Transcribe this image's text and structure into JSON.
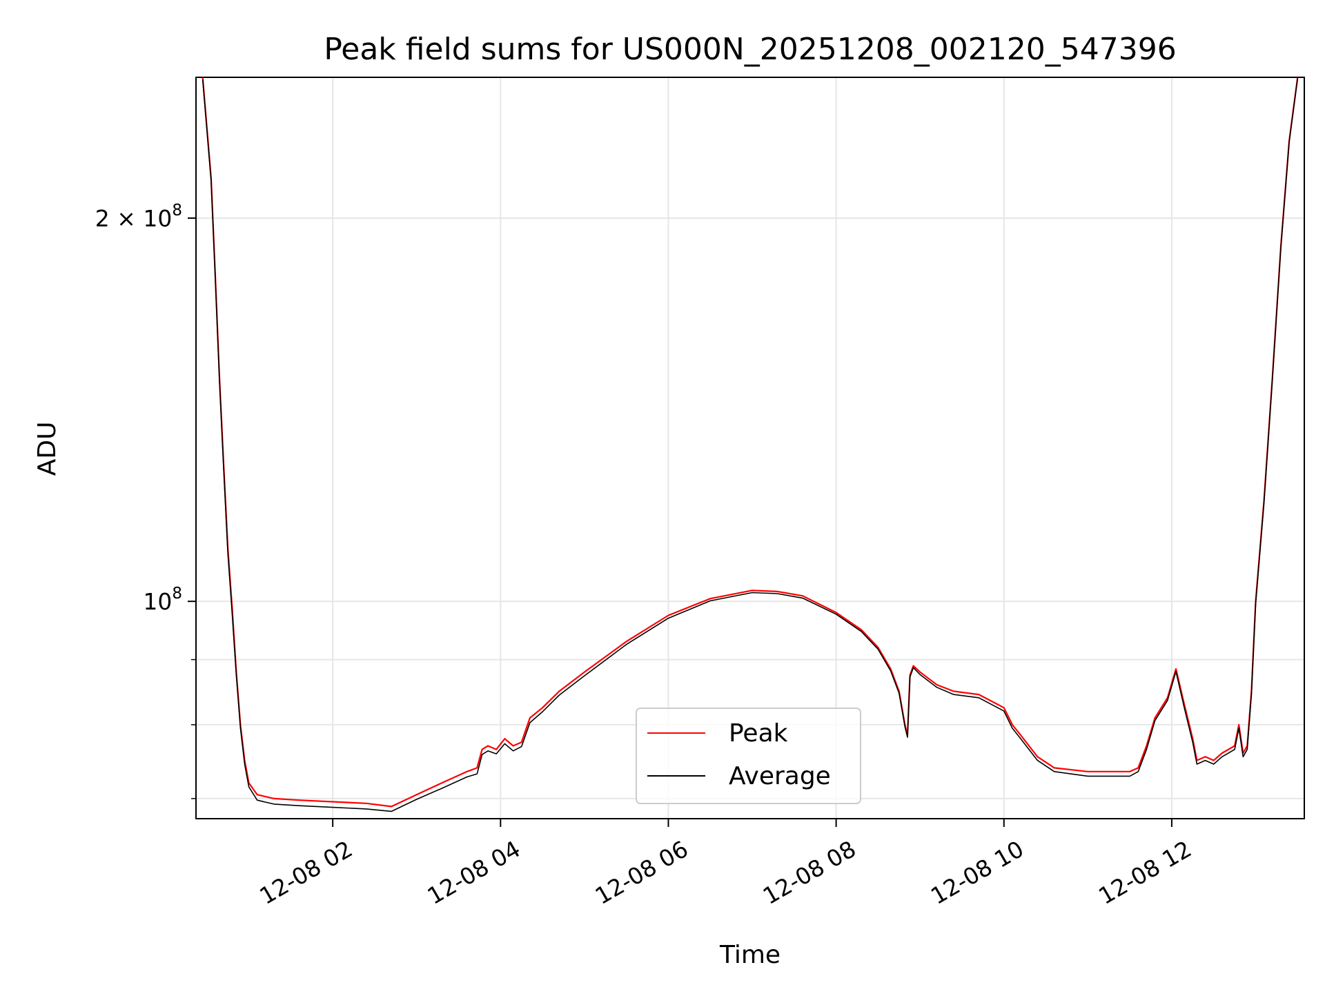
{
  "chart_data": {
    "type": "line",
    "title": "Peak field sums for US000N_20251208_002120_547396",
    "xlabel": "Time",
    "ylabel": "ADU",
    "x_unit": "hours (2025-12-08)",
    "xlim": [
      0.37,
      13.58
    ],
    "ylim": [
      67500000,
      258000000
    ],
    "yscale": "log",
    "grid": true,
    "legend": {
      "position": "lower-center"
    },
    "xticks": [
      {
        "value": 2,
        "label": "12-08 02"
      },
      {
        "value": 4,
        "label": "12-08 04"
      },
      {
        "value": 6,
        "label": "12-08 06"
      },
      {
        "value": 8,
        "label": "12-08 08"
      },
      {
        "value": 10,
        "label": "12-08 10"
      },
      {
        "value": 12,
        "label": "12-08 12"
      }
    ],
    "yticks_major": [
      {
        "value": 100000000,
        "base": "10",
        "exp": "8",
        "mult": ""
      },
      {
        "value": 200000000,
        "base": "10",
        "exp": "8",
        "mult": "2 × "
      }
    ],
    "yticks_minor": [
      70000000,
      80000000,
      90000000
    ],
    "series": [
      {
        "name": "Peak",
        "color": "#ff0000",
        "x": [
          0.45,
          0.55,
          0.6,
          0.65,
          0.7,
          0.75,
          0.8,
          0.85,
          0.9,
          0.95,
          1.0,
          1.1,
          1.3,
          1.6,
          2.0,
          2.4,
          2.7,
          3.0,
          3.3,
          3.6,
          3.72,
          3.78,
          3.85,
          3.95,
          4.05,
          4.15,
          4.25,
          4.35,
          4.5,
          4.7,
          5.0,
          5.5,
          6.0,
          6.5,
          7.0,
          7.3,
          7.6,
          8.0,
          8.3,
          8.5,
          8.65,
          8.75,
          8.82,
          8.85,
          8.88,
          8.92,
          9.0,
          9.2,
          9.4,
          9.7,
          10.0,
          10.1,
          10.2,
          10.4,
          10.6,
          11.0,
          11.5,
          11.6,
          11.7,
          11.8,
          11.95,
          12.05,
          12.15,
          12.25,
          12.3,
          12.4,
          12.5,
          12.6,
          12.75,
          12.8,
          12.85,
          12.9,
          12.95,
          13.0,
          13.1,
          13.2,
          13.3,
          13.4,
          13.5
        ],
        "values": [
          258000000,
          215000000,
          180000000,
          150000000,
          128000000,
          110000000,
          99000000,
          88000000,
          80000000,
          75000000,
          72000000,
          70500000,
          70000000,
          69800000,
          69600000,
          69400000,
          69000000,
          70500000,
          72000000,
          73500000,
          74000000,
          76500000,
          77000000,
          76500000,
          78000000,
          77000000,
          77500000,
          81000000,
          82500000,
          85000000,
          88000000,
          93000000,
          97500000,
          100500000,
          102000000,
          101800000,
          101000000,
          98000000,
          95000000,
          92000000,
          88500000,
          85000000,
          80000000,
          78500000,
          87500000,
          89000000,
          88000000,
          86000000,
          85000000,
          84500000,
          82500000,
          80000000,
          78500000,
          75500000,
          74000000,
          73500000,
          73500000,
          74000000,
          77000000,
          81000000,
          84000000,
          88500000,
          83000000,
          78000000,
          75000000,
          75500000,
          75000000,
          76000000,
          77000000,
          80000000,
          76000000,
          77000000,
          85000000,
          100000000,
          120000000,
          150000000,
          190000000,
          230000000,
          258000000
        ]
      },
      {
        "name": "Average",
        "color": "#000000",
        "x": [
          0.45,
          0.55,
          0.6,
          0.65,
          0.7,
          0.75,
          0.8,
          0.85,
          0.9,
          0.95,
          1.0,
          1.1,
          1.3,
          1.6,
          2.0,
          2.4,
          2.7,
          3.0,
          3.3,
          3.6,
          3.72,
          3.78,
          3.85,
          3.95,
          4.05,
          4.15,
          4.25,
          4.35,
          4.5,
          4.7,
          5.0,
          5.5,
          6.0,
          6.5,
          7.0,
          7.3,
          7.6,
          8.0,
          8.3,
          8.5,
          8.65,
          8.75,
          8.82,
          8.85,
          8.88,
          8.92,
          9.0,
          9.2,
          9.4,
          9.7,
          10.0,
          10.1,
          10.2,
          10.4,
          10.6,
          11.0,
          11.5,
          11.6,
          11.7,
          11.8,
          11.95,
          12.05,
          12.15,
          12.25,
          12.3,
          12.4,
          12.5,
          12.6,
          12.75,
          12.8,
          12.85,
          12.9,
          12.95,
          13.0,
          13.1,
          13.2,
          13.3,
          13.4,
          13.5
        ],
        "values": [
          257000000,
          214000000,
          179000000,
          149000000,
          127000000,
          109000000,
          98000000,
          87500000,
          79500000,
          74500000,
          71500000,
          69800000,
          69300000,
          69100000,
          68900000,
          68700000,
          68400000,
          69900000,
          71300000,
          72800000,
          73200000,
          75800000,
          76300000,
          75900000,
          77300000,
          76300000,
          76900000,
          80300000,
          81900000,
          84400000,
          87400000,
          92500000,
          97000000,
          100100000,
          101600000,
          101400000,
          100600000,
          97700000,
          94700000,
          91700000,
          88200000,
          84700000,
          79700000,
          78200000,
          87200000,
          88700000,
          87600000,
          85600000,
          84500000,
          84000000,
          82000000,
          79500000,
          78000000,
          75000000,
          73500000,
          72900000,
          72900000,
          73500000,
          76500000,
          80600000,
          83600000,
          88100000,
          82500000,
          77500000,
          74500000,
          75000000,
          74500000,
          75500000,
          76500000,
          79500000,
          75500000,
          76500000,
          84500000,
          99500000,
          119500000,
          149500000,
          189500000,
          229500000,
          257500000
        ]
      }
    ]
  }
}
